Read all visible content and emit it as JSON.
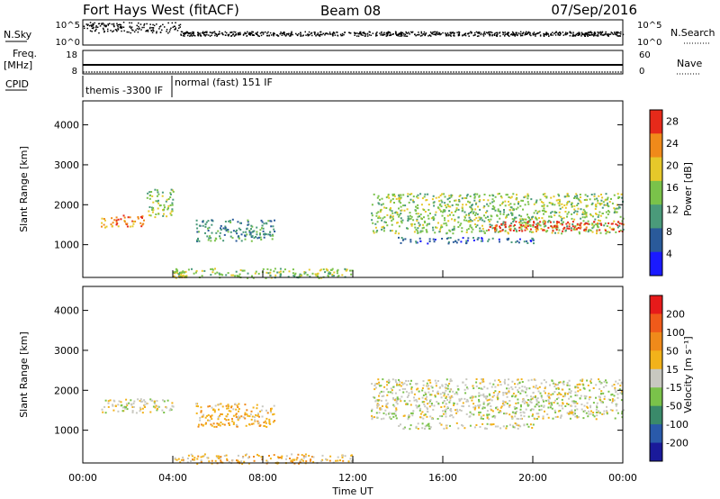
{
  "header": {
    "radar": "Fort Hays West (fitACF)",
    "beam": "Beam 08",
    "date": "07/Sep/2016"
  },
  "aux": {
    "nsky_label": "N.Sky",
    "nsky_ticks": [
      "10^5",
      "10^0"
    ],
    "nsearch_label": "N.Search",
    "nsearch_ticks": [
      "10^5",
      "10^0"
    ],
    "freq_label": "Freq.",
    "freq_unit": "[MHz]",
    "freq_ticks": [
      "18",
      "8"
    ],
    "nave_label": "Nave",
    "nave_ticks": [
      "60",
      "0"
    ],
    "cpid_label": "CPID",
    "cpid_segments": [
      {
        "name": "themis -3300 IF",
        "start_hour": 0.0
      },
      {
        "name": "normal (fast) 151 IF",
        "start_hour": 4.0
      }
    ]
  },
  "chart_data": [
    {
      "type": "heatmap",
      "id": "power",
      "ylabel": "Slant Range [km]",
      "yticks": [
        1000,
        2000,
        3000,
        4000
      ],
      "ylim": [
        180,
        4600
      ],
      "xlim": [
        0,
        24
      ],
      "colorbar_label": "Power [dB]",
      "colorbar_ticks": [
        4,
        8,
        12,
        16,
        20,
        24,
        28
      ],
      "colorbar_range": [
        0,
        30
      ],
      "colors": [
        "#1a1aff",
        "#2a5a9a",
        "#4a9a7a",
        "#7ac24a",
        "#e6c82a",
        "#f08a1a",
        "#e62a1a"
      ],
      "features": [
        {
          "t": [
            0.8,
            2.8
          ],
          "r": [
            1450,
            1750
          ],
          "level": 5
        },
        {
          "t": [
            2.8,
            4.0
          ],
          "r": [
            1700,
            2400
          ],
          "level": 3
        },
        {
          "t": [
            4.0,
            4.6
          ],
          "r": [
            200,
            350
          ],
          "level": 4
        },
        {
          "t": [
            5.0,
            8.5
          ],
          "r": [
            1100,
            1650
          ],
          "level": 2
        },
        {
          "t": [
            4.0,
            12.0
          ],
          "r": [
            180,
            420
          ],
          "level": 3
        },
        {
          "t": [
            12.8,
            24.0
          ],
          "r": [
            1300,
            2300
          ],
          "level": 3
        },
        {
          "t": [
            18.0,
            24.0
          ],
          "r": [
            1350,
            1600
          ],
          "level": 6
        },
        {
          "t": [
            14.0,
            20.0
          ],
          "r": [
            1050,
            1200
          ],
          "level": 1
        }
      ]
    },
    {
      "type": "heatmap",
      "id": "velocity",
      "ylabel": "Slant Range [km]",
      "yticks": [
        1000,
        2000,
        3000,
        4000
      ],
      "ylim": [
        180,
        4600
      ],
      "xlim": [
        0,
        24
      ],
      "xlabel": "Time UT",
      "xticks": [
        "00:00",
        "04:00",
        "08:00",
        "12:00",
        "16:00",
        "20:00",
        "00:00"
      ],
      "xtick_hours": [
        0,
        4,
        8,
        12,
        16,
        20,
        24
      ],
      "colorbar_label": "Velocity [m s⁻¹]",
      "colorbar_ticks": [
        200,
        100,
        50,
        15,
        -15,
        -50,
        -100,
        -200
      ],
      "colors": [
        "#1a1a9a",
        "#2a5aaa",
        "#3a8a6a",
        "#7ac24a",
        "#c8c8c0",
        "#f2b21a",
        "#f08a1a",
        "#f05a1a",
        "#e61a1a"
      ],
      "features": [
        {
          "t": [
            0.8,
            4.0
          ],
          "r": [
            1450,
            1800
          ],
          "level": 4
        },
        {
          "t": [
            5.0,
            8.5
          ],
          "r": [
            1100,
            1700
          ],
          "level": 5
        },
        {
          "t": [
            4.0,
            12.0
          ],
          "r": [
            180,
            420
          ],
          "level": 5
        },
        {
          "t": [
            12.8,
            24.0
          ],
          "r": [
            1300,
            2300
          ],
          "level": 4
        },
        {
          "t": [
            14.0,
            20.0
          ],
          "r": [
            1050,
            1200
          ],
          "level": 4
        }
      ]
    }
  ]
}
